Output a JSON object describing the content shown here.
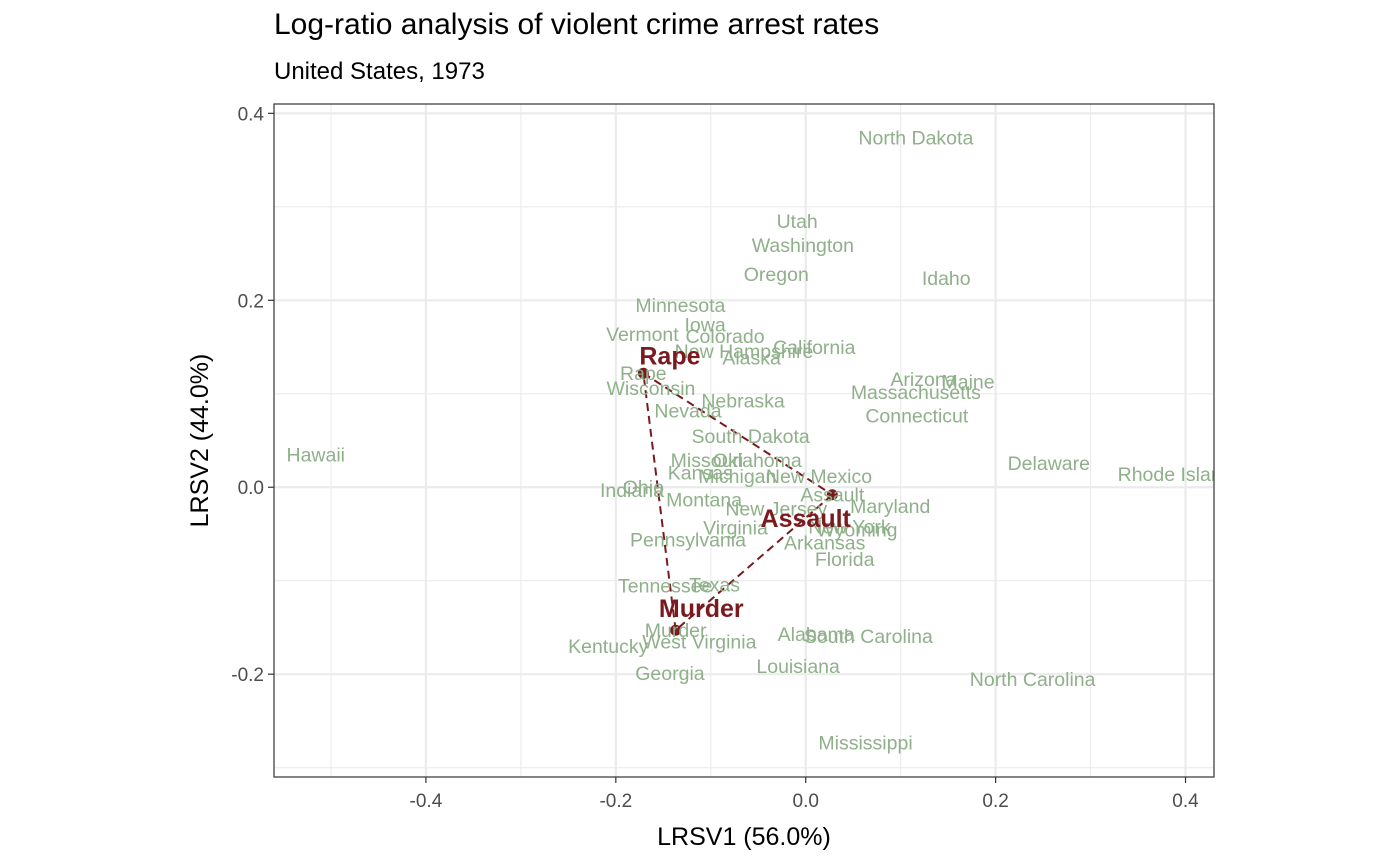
{
  "chart_data": {
    "type": "scatter",
    "title": "Log-ratio analysis of violent crime arrest rates",
    "subtitle": "United States, 1973",
    "xlabel": "LRSV1 (56.0%)",
    "ylabel": "LRSV2 (44.0%)",
    "xlim": [
      -0.56,
      0.43
    ],
    "ylim": [
      -0.31,
      0.41
    ],
    "xticks": [
      {
        "value": -0.4,
        "label": "-0.4"
      },
      {
        "value": -0.2,
        "label": "-0.2"
      },
      {
        "value": 0.0,
        "label": "0.0"
      },
      {
        "value": 0.2,
        "label": "0.2"
      },
      {
        "value": 0.4,
        "label": "0.4"
      }
    ],
    "yticks": [
      {
        "value": -0.2,
        "label": "-0.2"
      },
      {
        "value": 0.0,
        "label": "0.0"
      },
      {
        "value": 0.2,
        "label": "0.2"
      },
      {
        "value": 0.4,
        "label": "0.4"
      }
    ],
    "grid": true,
    "colors": {
      "states": "#8fb08a",
      "variables": "#7a1a1f",
      "grid": "#ebebeb",
      "panel_border": "#333333"
    },
    "states": [
      {
        "name": "North Dakota",
        "x": 0.116,
        "y": 0.374
      },
      {
        "name": "Utah",
        "x": -0.009,
        "y": 0.285
      },
      {
        "name": "Washington",
        "x": -0.003,
        "y": 0.259
      },
      {
        "name": "Oregon",
        "x": -0.031,
        "y": 0.228
      },
      {
        "name": "Idaho",
        "x": 0.148,
        "y": 0.224
      },
      {
        "name": "Minnesota",
        "x": -0.132,
        "y": 0.195
      },
      {
        "name": "Iowa",
        "x": -0.106,
        "y": 0.174
      },
      {
        "name": "Vermont",
        "x": -0.172,
        "y": 0.164
      },
      {
        "name": "Colorado",
        "x": -0.085,
        "y": 0.162
      },
      {
        "name": "California",
        "x": 0.009,
        "y": 0.15
      },
      {
        "name": "New Hampshire",
        "x": -0.065,
        "y": 0.146
      },
      {
        "name": "Alaska",
        "x": -0.057,
        "y": 0.139
      },
      {
        "name": "Rape",
        "x": -0.171,
        "y": 0.122
      },
      {
        "name": "Arizona",
        "x": 0.124,
        "y": 0.116
      },
      {
        "name": "Maine",
        "x": 0.171,
        "y": 0.113
      },
      {
        "name": "Wisconsin",
        "x": -0.163,
        "y": 0.106
      },
      {
        "name": "Massachusetts",
        "x": 0.116,
        "y": 0.102
      },
      {
        "name": "Nebraska",
        "x": -0.066,
        "y": 0.093
      },
      {
        "name": "Nevada",
        "x": -0.124,
        "y": 0.082
      },
      {
        "name": "Connecticut",
        "x": 0.117,
        "y": 0.077
      },
      {
        "name": "South Dakota",
        "x": -0.058,
        "y": 0.055
      },
      {
        "name": "Hawaii",
        "x": -0.516,
        "y": 0.035
      },
      {
        "name": "Missouri",
        "x": -0.104,
        "y": 0.029
      },
      {
        "name": "Oklahoma",
        "x": -0.051,
        "y": 0.029
      },
      {
        "name": "Delaware",
        "x": 0.256,
        "y": 0.026
      },
      {
        "name": "Kansas",
        "x": -0.111,
        "y": 0.016
      },
      {
        "name": "Michigan",
        "x": -0.072,
        "y": 0.012
      },
      {
        "name": "New Mexico",
        "x": 0.014,
        "y": 0.012
      },
      {
        "name": "Rhode Island",
        "x": 0.389,
        "y": 0.014
      },
      {
        "name": "Ohio",
        "x": -0.171,
        "y": 0.0
      },
      {
        "name": "Indiana",
        "x": -0.183,
        "y": -0.003
      },
      {
        "name": "Assault",
        "x": 0.028,
        "y": -0.008
      },
      {
        "name": "Montana",
        "x": -0.107,
        "y": -0.013
      },
      {
        "name": "Maryland",
        "x": 0.089,
        "y": -0.02
      },
      {
        "name": "New Jersey",
        "x": -0.031,
        "y": -0.023
      },
      {
        "name": "Virginia",
        "x": -0.074,
        "y": -0.043
      },
      {
        "name": "New York",
        "x": 0.046,
        "y": -0.042
      },
      {
        "name": "Wyoming",
        "x": 0.054,
        "y": -0.045
      },
      {
        "name": "Pennsylvania",
        "x": -0.124,
        "y": -0.056
      },
      {
        "name": "Arkansas",
        "x": 0.02,
        "y": -0.059
      },
      {
        "name": "Florida",
        "x": 0.041,
        "y": -0.077
      },
      {
        "name": "Tennessee",
        "x": -0.148,
        "y": -0.105
      },
      {
        "name": "Texas",
        "x": -0.096,
        "y": -0.104
      },
      {
        "name": "Murder",
        "x": -0.137,
        "y": -0.153
      },
      {
        "name": "Alabama",
        "x": 0.011,
        "y": -0.157
      },
      {
        "name": "South Carolina",
        "x": 0.066,
        "y": -0.159
      },
      {
        "name": "West Virginia",
        "x": -0.112,
        "y": -0.165
      },
      {
        "name": "Kentucky",
        "x": -0.208,
        "y": -0.17
      },
      {
        "name": "Louisiana",
        "x": -0.008,
        "y": -0.191
      },
      {
        "name": "Georgia",
        "x": -0.143,
        "y": -0.199
      },
      {
        "name": "North Carolina",
        "x": 0.239,
        "y": -0.205
      },
      {
        "name": "Mississippi",
        "x": 0.063,
        "y": -0.273
      }
    ],
    "variables": [
      {
        "name": "Rape",
        "x": -0.171,
        "y": 0.122,
        "label_dx": 0.028,
        "label_dy": 0.019
      },
      {
        "name": "Assault",
        "x": 0.028,
        "y": -0.008,
        "label_dx": -0.028,
        "label_dy": -0.025
      },
      {
        "name": "Murder",
        "x": -0.137,
        "y": -0.153,
        "label_dx": 0.027,
        "label_dy": 0.024
      }
    ]
  }
}
